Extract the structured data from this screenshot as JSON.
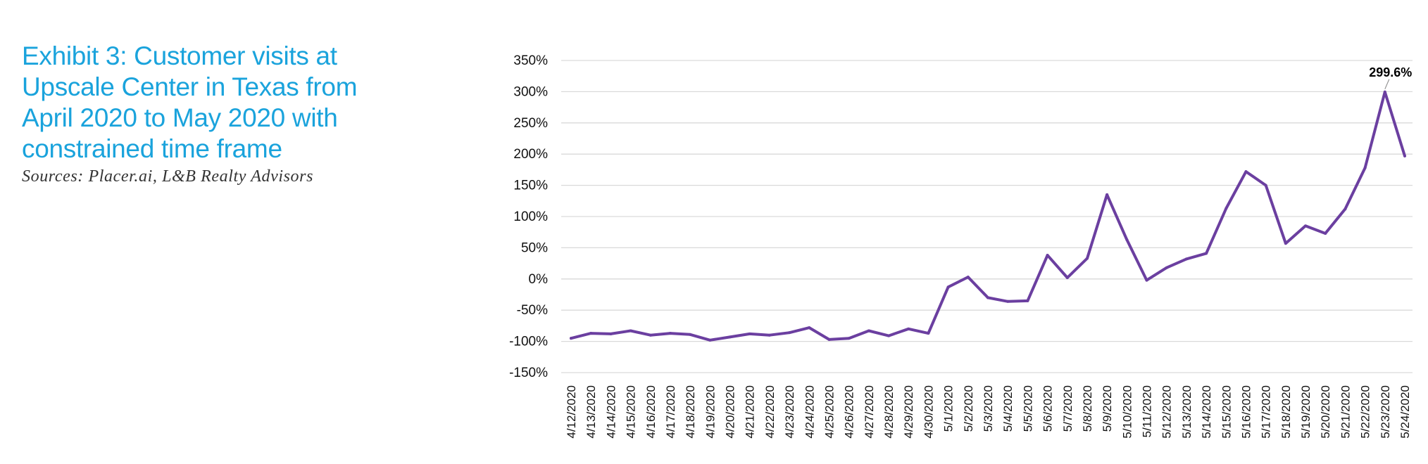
{
  "header": {
    "title_lines": [
      "Exhibit 3: Customer visits at",
      "Upscale Center in Texas from",
      "April 2020 to May 2020 with",
      "constrained time frame"
    ],
    "source": "Sources: Placer.ai, L&B Realty Advisors"
  },
  "colors": {
    "title": "#1aa3dc",
    "line": "#6b3fa0",
    "grid": "#d9d9d9"
  },
  "chart_data": {
    "type": "line",
    "title": "",
    "xlabel": "",
    "ylabel": "",
    "ylim": [
      -150,
      350
    ],
    "ytick_values": [
      350,
      300,
      250,
      200,
      150,
      100,
      50,
      0,
      -50,
      -100,
      -150
    ],
    "ytick_labels": [
      "350%",
      "300%",
      "250%",
      "200%",
      "150%",
      "100%",
      "50%",
      "0%",
      "-50%",
      "-100%",
      "-150%"
    ],
    "grid": true,
    "legend": "none",
    "categories": [
      "4/12/2020",
      "4/13/2020",
      "4/14/2020",
      "4/15/2020",
      "4/16/2020",
      "4/17/2020",
      "4/18/2020",
      "4/19/2020",
      "4/20/2020",
      "4/21/2020",
      "4/22/2020",
      "4/23/2020",
      "4/24/2020",
      "4/25/2020",
      "4/26/2020",
      "4/27/2020",
      "4/28/2020",
      "4/29/2020",
      "4/30/2020",
      "5/1/2020",
      "5/2/2020",
      "5/3/2020",
      "5/4/2020",
      "5/5/2020",
      "5/6/2020",
      "5/7/2020",
      "5/8/2020",
      "5/9/2020",
      "5/10/2020",
      "5/11/2020",
      "5/12/2020",
      "5/13/2020",
      "5/14/2020",
      "5/15/2020",
      "5/16/2020",
      "5/17/2020",
      "5/18/2020",
      "5/19/2020",
      "5/20/2020",
      "5/21/2020",
      "5/22/2020",
      "5/23/2020",
      "5/24/2020"
    ],
    "series": [
      {
        "values": [
          -95,
          -87,
          -88,
          -83,
          -90,
          -87,
          -89,
          -98,
          -93,
          -88,
          -90,
          -86,
          -78,
          -97,
          -95,
          -83,
          -91,
          -80,
          -87,
          -13,
          3,
          -30,
          -36,
          -35,
          38,
          2,
          33,
          135,
          63,
          -2,
          18,
          32,
          41,
          113,
          172,
          150,
          57,
          85,
          73,
          112,
          178,
          299.6,
          197
        ]
      }
    ],
    "annotations": [
      {
        "category": "5/23/2020",
        "value": 299.6,
        "text": "299.6%"
      }
    ]
  }
}
